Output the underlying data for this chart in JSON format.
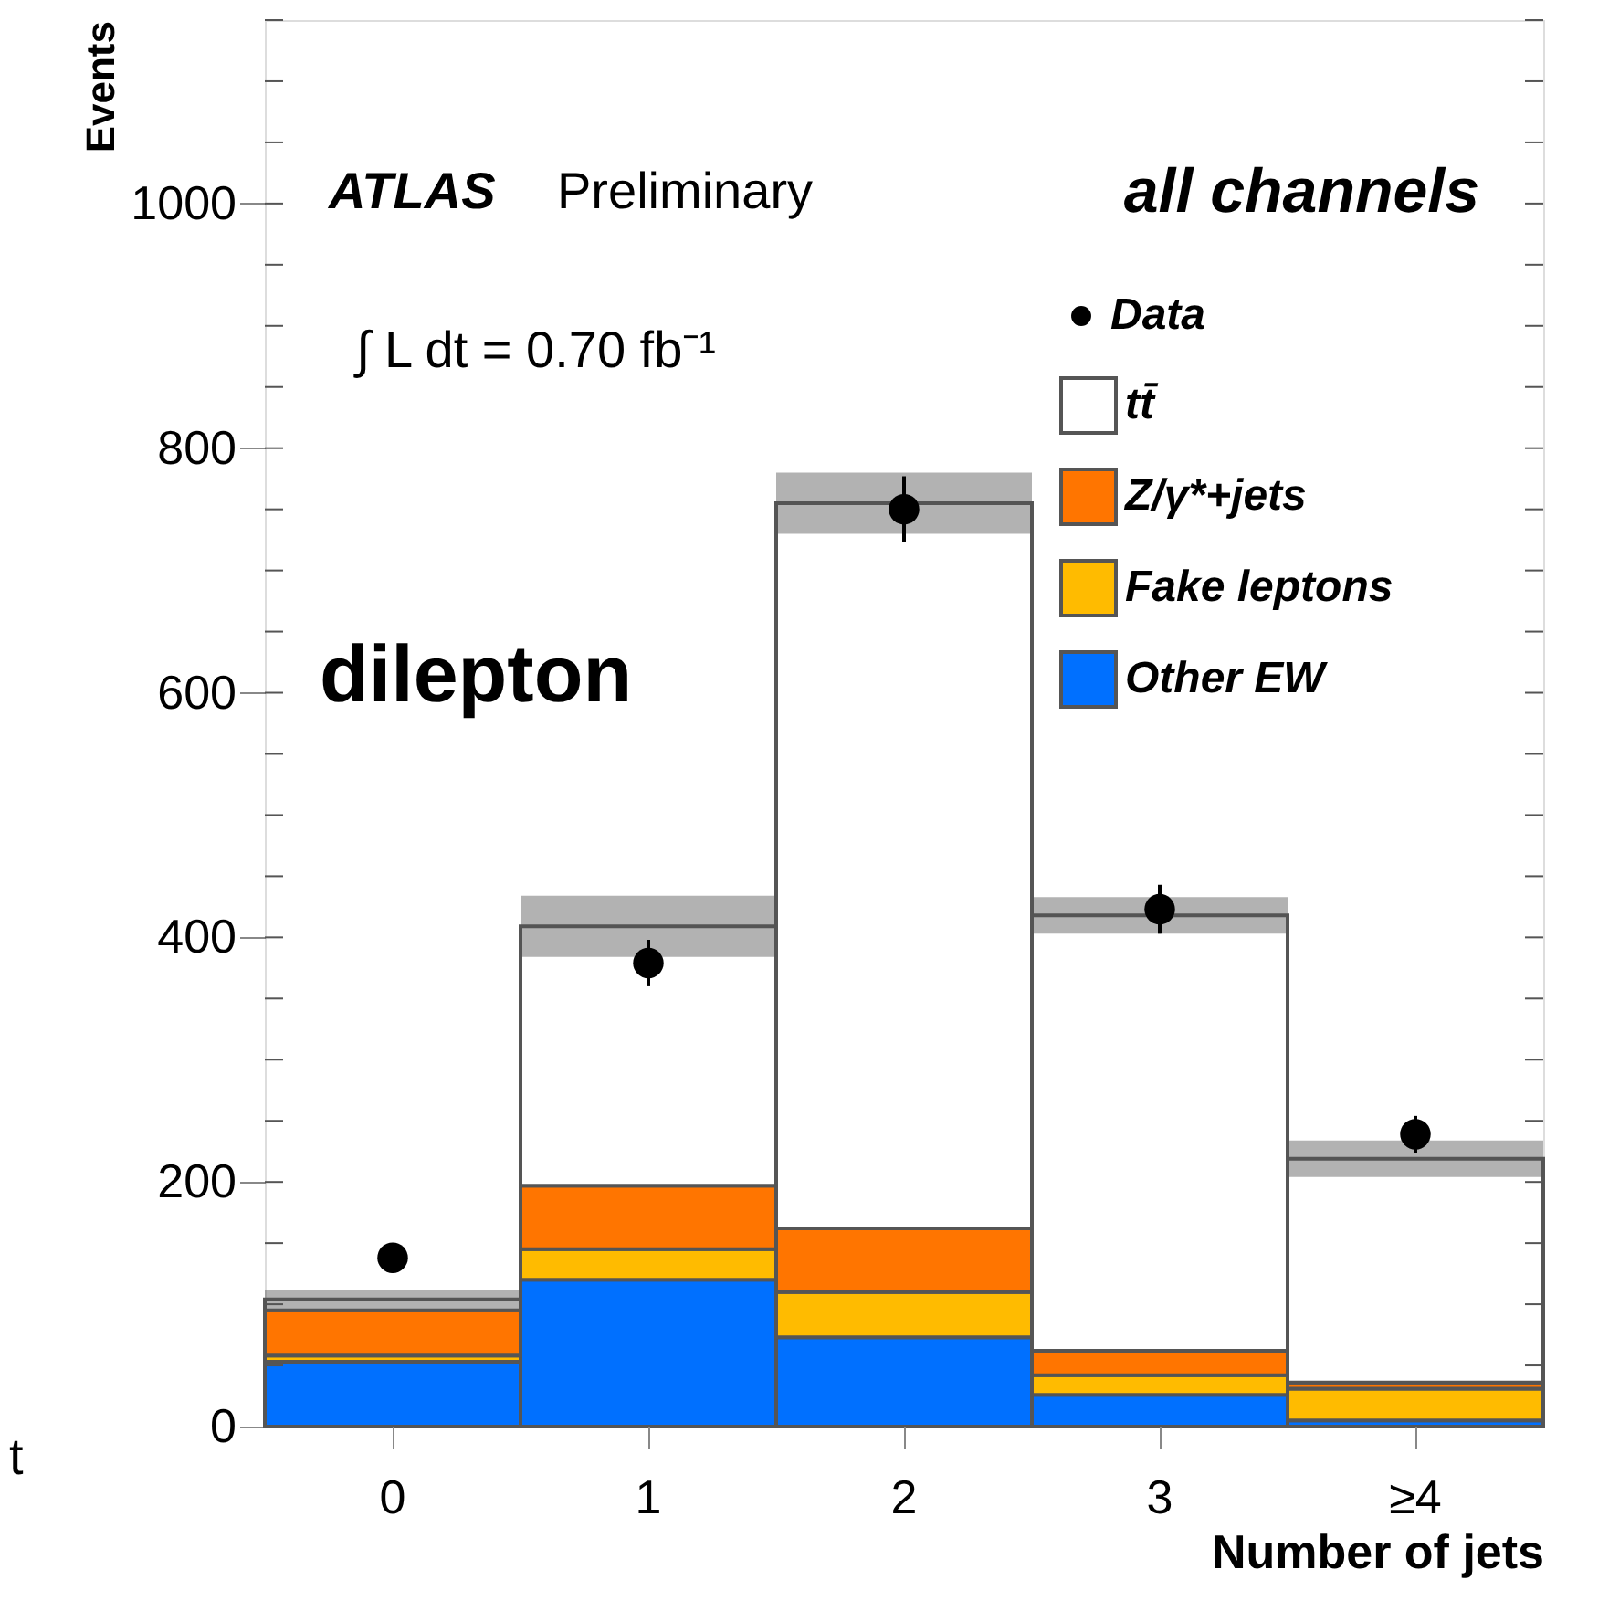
{
  "chart_data": {
    "type": "bar",
    "stacked": true,
    "categories": [
      "0",
      "1",
      "2",
      "3",
      "≥4"
    ],
    "xlabel": "Number of jets",
    "ylabel": "Events",
    "ylim": [
      0,
      1150
    ],
    "yticks": [
      0,
      200,
      400,
      600,
      800,
      1000
    ],
    "series": [
      {
        "name": "Other EW",
        "color": "#0070ff",
        "values": [
          53,
          120,
          73,
          26,
          5
        ]
      },
      {
        "name": "Fake leptons",
        "color": "#ffbb00",
        "values": [
          5,
          25,
          37,
          16,
          26
        ]
      },
      {
        "name": "Z/γ*+jets",
        "color": "#ff7500",
        "values": [
          37,
          52,
          52,
          20,
          5
        ]
      },
      {
        "name": "tt̄",
        "color": "#ffffff",
        "values": [
          9,
          212,
          593,
          356,
          183
        ],
        "errors": [
          8,
          25,
          25,
          15,
          15
        ]
      },
      {
        "name": "Data",
        "type": "scatter",
        "color": "#000000",
        "values": [
          138,
          379,
          750,
          423,
          239
        ],
        "errors": [
          12,
          19,
          27,
          20,
          15
        ]
      }
    ],
    "legend": "top right",
    "grid": false,
    "marker": "circle",
    "annotations": [
      "ATLAS",
      "Preliminary",
      "all channels",
      "∫ L dt = 0.70 fb⁻¹",
      "dilepton",
      "t"
    ]
  }
}
